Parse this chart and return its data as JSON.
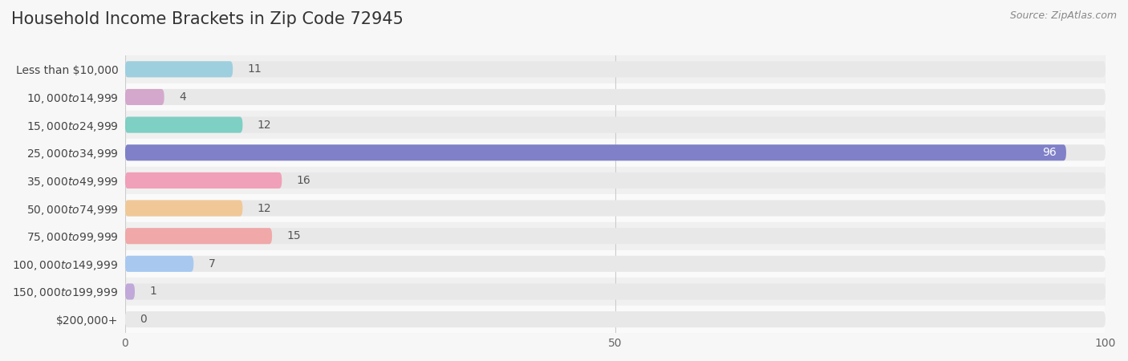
{
  "title": "Household Income Brackets in Zip Code 72945",
  "source": "Source: ZipAtlas.com",
  "categories": [
    "Less than $10,000",
    "$10,000 to $14,999",
    "$15,000 to $24,999",
    "$25,000 to $34,999",
    "$35,000 to $49,999",
    "$50,000 to $74,999",
    "$75,000 to $99,999",
    "$100,000 to $149,999",
    "$150,000 to $199,999",
    "$200,000+"
  ],
  "values": [
    11,
    4,
    12,
    96,
    16,
    12,
    15,
    7,
    1,
    0
  ],
  "bar_colors": [
    "#9ecfdf",
    "#d4a8cc",
    "#7ecfc4",
    "#8080c8",
    "#f0a0b8",
    "#f0c898",
    "#f0a8a8",
    "#a8c8f0",
    "#c0a8d8",
    "#7ecfc4"
  ],
  "label_colors": [
    "#555555",
    "#555555",
    "#555555",
    "#ffffff",
    "#555555",
    "#555555",
    "#555555",
    "#555555",
    "#555555",
    "#555555"
  ],
  "xlim": [
    0,
    100
  ],
  "xticks": [
    0,
    50,
    100
  ],
  "background_color": "#f7f7f7",
  "bar_bg_color": "#e8e8e8",
  "row_bg_colors": [
    "#f0f0f0",
    "#fafafa"
  ],
  "title_fontsize": 15,
  "label_fontsize": 10,
  "value_fontsize": 10,
  "bar_height": 0.58
}
